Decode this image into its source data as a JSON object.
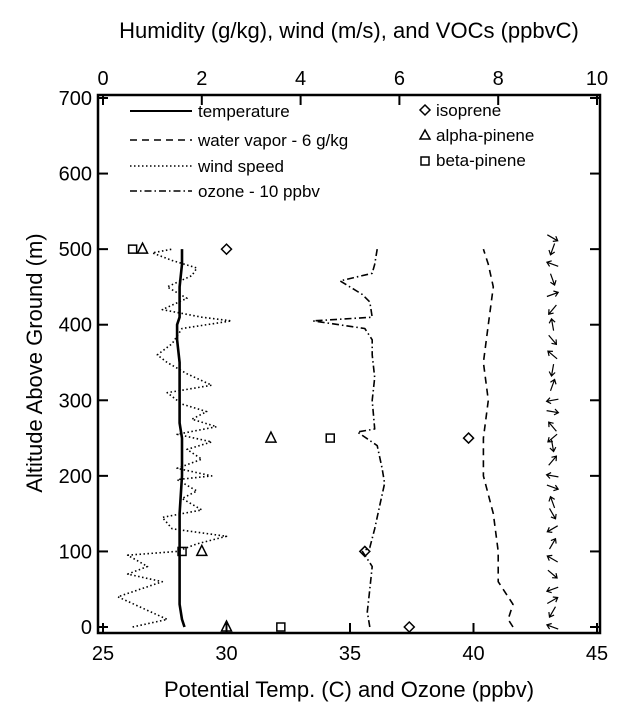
{
  "chart_data": {
    "type": "line",
    "xlabel": "Potential Temp. (C) and Ozone (ppbv)",
    "x2label": "Humidity (g/kg), wind (m/s), and VOCs (ppbvC)",
    "ylabel": "Altitude Above Ground (m)",
    "xlim": [
      25,
      45
    ],
    "x2lim": [
      0,
      10
    ],
    "ylim": [
      0,
      700
    ],
    "xticks": [
      "25",
      "30",
      "35",
      "40",
      "45"
    ],
    "x2ticks": [
      "0",
      "2",
      "4",
      "6",
      "8",
      "10"
    ],
    "yticks": [
      "0",
      "100",
      "200",
      "300",
      "400",
      "500",
      "600",
      "700"
    ],
    "legend": {
      "temperature": "temperature",
      "water_vapor": "water vapor - 6 g/kg",
      "wind_speed": "wind speed",
      "ozone": "ozone - 10 ppbv",
      "isoprene": "isoprene",
      "alpha_pinene": "alpha-pinene",
      "beta_pinene": "beta-pinene"
    },
    "series": [
      {
        "name": "temperature",
        "axis": "bottom",
        "style": "solid",
        "points": [
          [
            28.3,
            0
          ],
          [
            28.2,
            10
          ],
          [
            28.1,
            30
          ],
          [
            28.1,
            60
          ],
          [
            28.1,
            100
          ],
          [
            28.1,
            150
          ],
          [
            28.2,
            200
          ],
          [
            28.2,
            250
          ],
          [
            28.1,
            270
          ],
          [
            28.1,
            300
          ],
          [
            28.1,
            350
          ],
          [
            28.0,
            380
          ],
          [
            28.0,
            400
          ],
          [
            28.1,
            410
          ],
          [
            28.1,
            450
          ],
          [
            28.2,
            480
          ],
          [
            28.2,
            500
          ]
        ]
      },
      {
        "name": "water vapor - 6 g/kg",
        "axis": "top",
        "style": "dashed",
        "points": [
          [
            8.3,
            0
          ],
          [
            8.2,
            10
          ],
          [
            8.3,
            30
          ],
          [
            8.0,
            60
          ],
          [
            8.0,
            100
          ],
          [
            7.9,
            150
          ],
          [
            7.7,
            200
          ],
          [
            7.7,
            250
          ],
          [
            7.8,
            300
          ],
          [
            7.7,
            350
          ],
          [
            7.8,
            400
          ],
          [
            7.9,
            450
          ],
          [
            7.8,
            480
          ],
          [
            7.7,
            500
          ]
        ]
      },
      {
        "name": "wind speed",
        "axis": "top",
        "style": "dotted",
        "points": [
          [
            0.6,
            0
          ],
          [
            1.3,
            10
          ],
          [
            0.3,
            40
          ],
          [
            1.2,
            60
          ],
          [
            0.5,
            70
          ],
          [
            0.9,
            80
          ],
          [
            0.5,
            95
          ],
          [
            1.5,
            100
          ],
          [
            1.9,
            110
          ],
          [
            2.5,
            120
          ],
          [
            1.4,
            130
          ],
          [
            1.2,
            145
          ],
          [
            2.0,
            155
          ],
          [
            1.6,
            170
          ],
          [
            1.9,
            180
          ],
          [
            1.5,
            195
          ],
          [
            2.2,
            200
          ],
          [
            1.5,
            210
          ],
          [
            2.0,
            222
          ],
          [
            1.7,
            235
          ],
          [
            2.2,
            245
          ],
          [
            1.5,
            255
          ],
          [
            2.3,
            265
          ],
          [
            1.8,
            275
          ],
          [
            2.1,
            285
          ],
          [
            1.6,
            295
          ],
          [
            1.3,
            310
          ],
          [
            2.2,
            320
          ],
          [
            1.7,
            335
          ],
          [
            1.3,
            350
          ],
          [
            1.1,
            360
          ],
          [
            1.4,
            375
          ],
          [
            1.6,
            395
          ],
          [
            2.6,
            405
          ],
          [
            2.0,
            410
          ],
          [
            1.2,
            420
          ],
          [
            1.7,
            435
          ],
          [
            1.3,
            450
          ],
          [
            1.8,
            465
          ],
          [
            1.9,
            475
          ],
          [
            1.4,
            485
          ],
          [
            1.0,
            495
          ],
          [
            1.4,
            500
          ]
        ]
      },
      {
        "name": "ozone - 10 ppbv",
        "axis": "bottom",
        "style": "dashdot",
        "points": [
          [
            35.8,
            0
          ],
          [
            35.7,
            20
          ],
          [
            35.8,
            50
          ],
          [
            35.9,
            80
          ],
          [
            35.5,
            100
          ],
          [
            35.8,
            105
          ],
          [
            36.0,
            130
          ],
          [
            36.2,
            160
          ],
          [
            36.4,
            190
          ],
          [
            36.3,
            210
          ],
          [
            36.1,
            240
          ],
          [
            35.3,
            258
          ],
          [
            36.0,
            262
          ],
          [
            35.9,
            300
          ],
          [
            36.0,
            330
          ],
          [
            35.9,
            360
          ],
          [
            35.9,
            380
          ],
          [
            35.6,
            395
          ],
          [
            33.5,
            405
          ],
          [
            35.9,
            410
          ],
          [
            35.8,
            430
          ],
          [
            35.5,
            440
          ],
          [
            34.6,
            458
          ],
          [
            35.9,
            468
          ],
          [
            36.0,
            480
          ],
          [
            36.1,
            500
          ]
        ]
      }
    ],
    "markers": [
      {
        "name": "isoprene",
        "shape": "diamond",
        "axis": "top",
        "points": [
          [
            2.5,
            500
          ],
          [
            7.4,
            250
          ],
          [
            5.3,
            100
          ],
          [
            6.2,
            0
          ]
        ]
      },
      {
        "name": "alpha-pinene",
        "shape": "triangle",
        "axis": "top",
        "points": [
          [
            0.8,
            500
          ],
          [
            3.4,
            250
          ],
          [
            2.0,
            100
          ],
          [
            2.5,
            0
          ]
        ]
      },
      {
        "name": "beta-pinene",
        "shape": "square",
        "axis": "top",
        "points": [
          [
            0.6,
            500
          ],
          [
            4.6,
            250
          ],
          [
            1.6,
            100
          ],
          [
            3.6,
            0
          ]
        ]
      }
    ],
    "wind_vectors": {
      "axis": "top",
      "x": 9.1,
      "altitudes": [
        0,
        20,
        35,
        50,
        70,
        90,
        110,
        130,
        150,
        165,
        185,
        200,
        220,
        240,
        250,
        265,
        285,
        300,
        320,
        340,
        360,
        380,
        400,
        420,
        440,
        460,
        480,
        500,
        515
      ]
    },
    "grid": false,
    "legend_position": "top"
  }
}
